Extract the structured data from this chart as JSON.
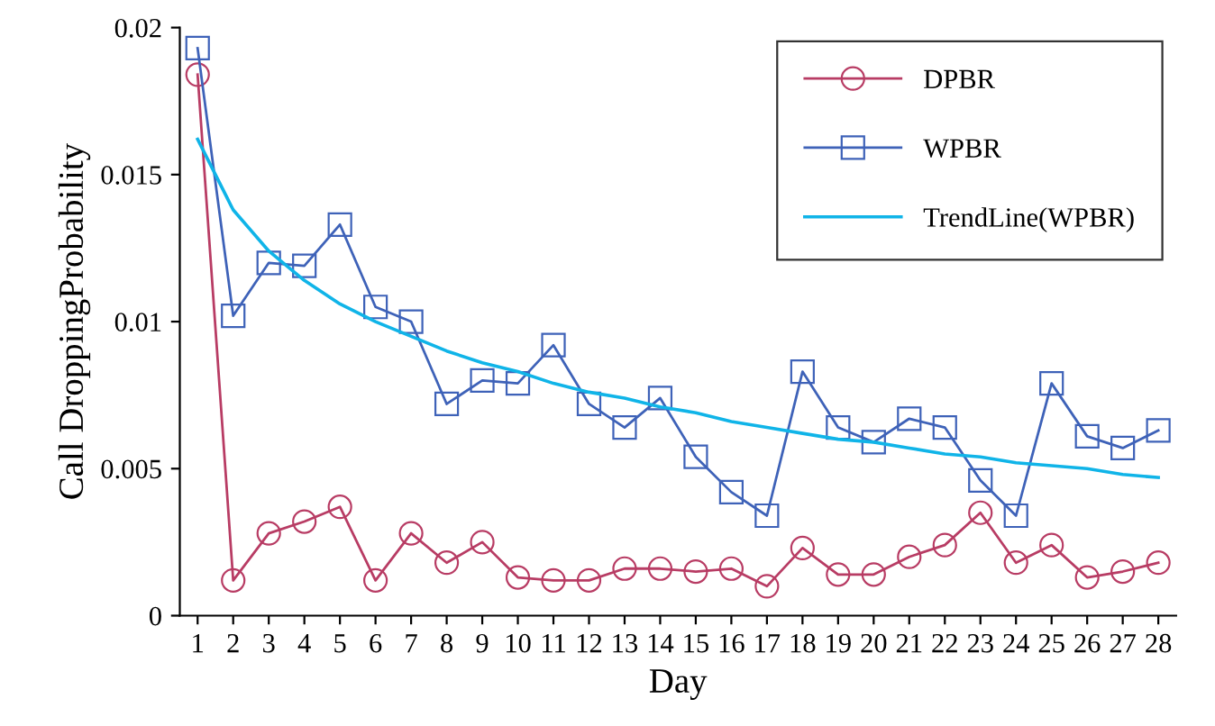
{
  "chart_data": {
    "type": "line",
    "xlabel": "Day",
    "ylabel": "Call DroppingProbability",
    "categories": [
      "1",
      "2",
      "3",
      "4",
      "5",
      "6",
      "7",
      "8",
      "9",
      "10",
      "11",
      "12",
      "13",
      "14",
      "15",
      "16",
      "17",
      "18",
      "19",
      "20",
      "21",
      "22",
      "23",
      "24",
      "25",
      "26",
      "27",
      "28"
    ],
    "ylim": [
      0,
      0.02
    ],
    "yticks": [
      0,
      0.005,
      {
        "value": 0.01,
        "label": "0.01"
      },
      0.015,
      {
        "value": 0.02,
        "label": "0.02"
      }
    ],
    "grid": false,
    "legend": "top right",
    "series": [
      {
        "name": "DPBR",
        "color": "#b83c64",
        "marker": "circle",
        "values": [
          0.0184,
          0.0012,
          0.0028,
          0.0032,
          0.0037,
          0.0012,
          0.0028,
          0.0018,
          0.0025,
          0.0013,
          0.0012,
          0.0012,
          0.0016,
          0.0016,
          0.0015,
          0.0016,
          0.001,
          0.0023,
          0.0014,
          0.0014,
          0.002,
          0.0024,
          0.0035,
          0.0018,
          0.0024,
          0.0013,
          0.0015,
          0.0018
        ]
      },
      {
        "name": "WPBR",
        "color": "#3e62b8",
        "marker": "square",
        "values": [
          0.0193,
          0.0102,
          0.012,
          0.0119,
          0.0133,
          0.0105,
          0.01,
          0.0072,
          0.008,
          0.0079,
          0.0092,
          0.0072,
          0.0064,
          0.0074,
          0.0054,
          0.0042,
          0.0034,
          0.0083,
          0.0064,
          0.0059,
          0.0067,
          0.0064,
          0.0046,
          0.0034,
          0.0079,
          0.0061,
          0.0057,
          0.0063
        ]
      },
      {
        "name": "TrendLine(WPBR)",
        "color": "#10b4e8",
        "marker": "none",
        "values": [
          0.0162,
          0.0138,
          0.0124,
          0.0114,
          0.0106,
          0.01,
          0.0095,
          0.009,
          0.0086,
          0.0083,
          0.0079,
          0.0076,
          0.0074,
          0.0071,
          0.0069,
          0.0066,
          0.0064,
          0.0062,
          0.006,
          0.0059,
          0.0057,
          0.0055,
          0.0054,
          0.0052,
          0.0051,
          0.005,
          0.0048,
          0.0047
        ]
      }
    ]
  }
}
